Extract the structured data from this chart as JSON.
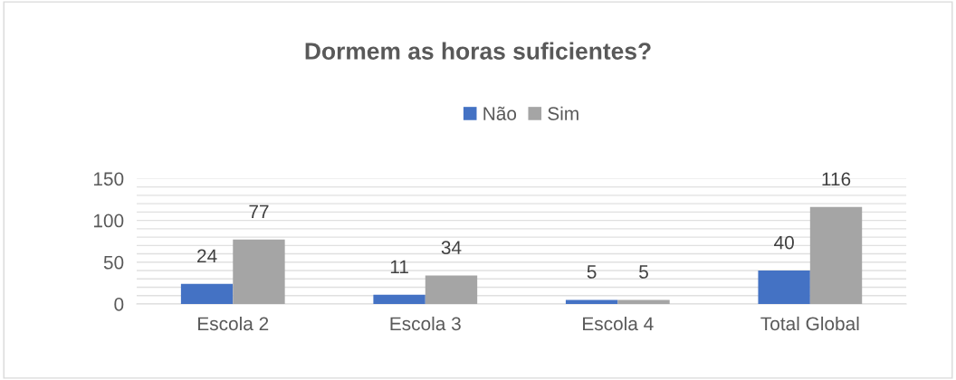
{
  "chart_data": {
    "type": "bar",
    "title": "Dormem as horas suficientes?",
    "categories": [
      "Escola 2",
      "Escola 3",
      "Escola 4",
      "Total Global"
    ],
    "series": [
      {
        "name": "Não",
        "color": "#4472c4",
        "values": [
          24,
          11,
          5,
          40
        ]
      },
      {
        "name": "Sim",
        "color": "#a5a5a5",
        "values": [
          77,
          34,
          5,
          116
        ]
      }
    ],
    "ylim": [
      0,
      150
    ],
    "yticks": [
      0,
      {
        "value": 10,
        "label": null
      },
      {
        "value": 20,
        "label": null
      },
      {
        "value": 30,
        "label": null
      },
      {
        "value": 40,
        "label": null
      },
      50,
      {
        "value": 60,
        "label": null
      },
      {
        "value": 70,
        "label": null
      },
      {
        "value": 80,
        "label": null
      },
      {
        "value": 90,
        "label": null
      },
      100,
      {
        "value": 110,
        "label": null
      },
      {
        "value": 120,
        "label": null
      },
      {
        "value": 130,
        "label": null
      },
      {
        "value": 140,
        "label": null
      },
      150
    ],
    "grid": "y",
    "legend": "top",
    "data_labels": true
  }
}
